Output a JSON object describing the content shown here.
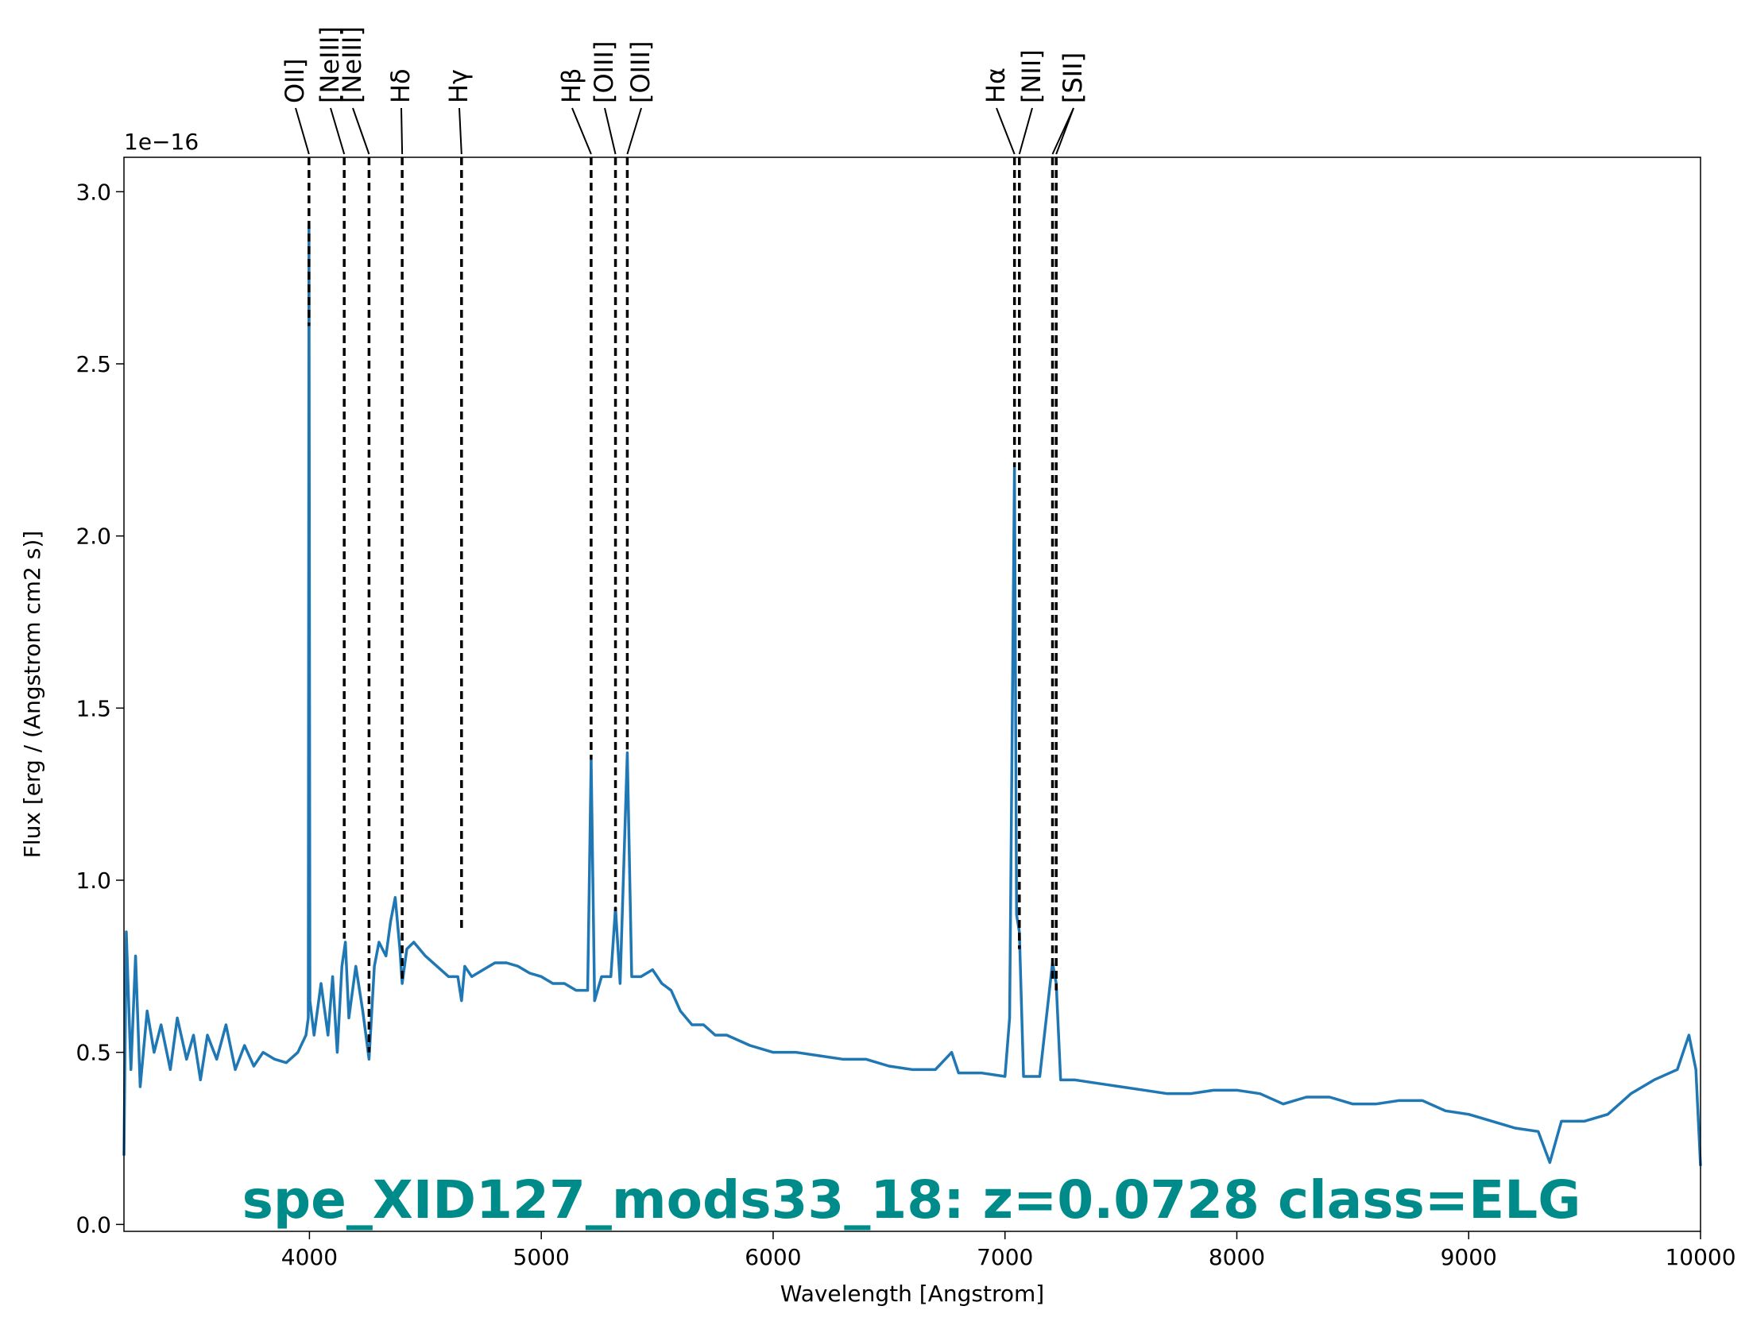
{
  "chart_data": {
    "type": "line",
    "title": "spe_XID127_mods33_18: z=0.0728 class=ELG",
    "x_label": "Wavelength [Angstrom]",
    "y_label": "Flux [erg / (Angstrom cm2 s)]",
    "y_offset_label": "1e−16",
    "color": "#1f77b4",
    "title_color": "#008b8b",
    "xlim": [
      3200,
      10000
    ],
    "ylim": [
      -0.02,
      3.1
    ],
    "xticks": [
      4000,
      5000,
      6000,
      7000,
      8000,
      9000,
      10000
    ],
    "yticks": [
      {
        "value": 0,
        "label": "0.0"
      },
      0.5,
      {
        "value": 1,
        "label": "1.0"
      },
      1.5,
      {
        "value": 2,
        "label": "2.0"
      },
      2.5,
      {
        "value": 3,
        "label": "3.0"
      }
    ],
    "x": [
      3200,
      3210,
      3230,
      3250,
      3270,
      3300,
      3330,
      3360,
      3400,
      3430,
      3470,
      3500,
      3530,
      3560,
      3600,
      3640,
      3680,
      3720,
      3760,
      3800,
      3850,
      3900,
      3950,
      3985,
      3995,
      3998,
      4002,
      4020,
      4050,
      4080,
      4100,
      4120,
      4140,
      4155,
      4170,
      4200,
      4230,
      4257,
      4280,
      4300,
      4330,
      4350,
      4370,
      4390,
      4400,
      4420,
      4450,
      4500,
      4550,
      4600,
      4640,
      4656,
      4670,
      4700,
      4750,
      4800,
      4850,
      4900,
      4950,
      5000,
      5050,
      5100,
      5150,
      5200,
      5215,
      5230,
      5260,
      5300,
      5320,
      5340,
      5371,
      5390,
      5430,
      5480,
      5520,
      5560,
      5600,
      5650,
      5700,
      5750,
      5800,
      5900,
      6000,
      6100,
      6200,
      6300,
      6400,
      6500,
      6600,
      6700,
      6770,
      6800,
      6900,
      7000,
      7020,
      7041,
      7050,
      7062,
      7080,
      7150,
      7205,
      7221,
      7240,
      7300,
      7400,
      7500,
      7600,
      7700,
      7800,
      7900,
      8000,
      8100,
      8200,
      8300,
      8400,
      8500,
      8600,
      8700,
      8800,
      8900,
      9000,
      9100,
      9200,
      9300,
      9350,
      9400,
      9500,
      9600,
      9700,
      9800,
      9900,
      9950,
      9980,
      10000
    ],
    "values": [
      0.2,
      0.85,
      0.45,
      0.78,
      0.4,
      0.62,
      0.5,
      0.58,
      0.45,
      0.6,
      0.48,
      0.55,
      0.42,
      0.55,
      0.48,
      0.58,
      0.45,
      0.52,
      0.46,
      0.5,
      0.48,
      0.47,
      0.5,
      0.55,
      0.6,
      2.9,
      0.65,
      0.55,
      0.7,
      0.55,
      0.72,
      0.5,
      0.75,
      0.82,
      0.6,
      0.75,
      0.62,
      0.48,
      0.75,
      0.82,
      0.78,
      0.88,
      0.95,
      0.8,
      0.7,
      0.8,
      0.82,
      0.78,
      0.75,
      0.72,
      0.72,
      0.65,
      0.75,
      0.72,
      0.74,
      0.76,
      0.76,
      0.75,
      0.73,
      0.72,
      0.7,
      0.7,
      0.68,
      0.68,
      1.35,
      0.65,
      0.72,
      0.72,
      0.92,
      0.7,
      1.37,
      0.72,
      0.72,
      0.74,
      0.7,
      0.68,
      0.62,
      0.58,
      0.58,
      0.55,
      0.55,
      0.52,
      0.5,
      0.5,
      0.49,
      0.48,
      0.48,
      0.46,
      0.45,
      0.45,
      0.5,
      0.44,
      0.44,
      0.43,
      0.6,
      2.2,
      0.9,
      0.85,
      0.43,
      0.43,
      0.76,
      0.7,
      0.42,
      0.42,
      0.41,
      0.4,
      0.39,
      0.38,
      0.38,
      0.39,
      0.39,
      0.38,
      0.35,
      0.37,
      0.37,
      0.35,
      0.35,
      0.36,
      0.36,
      0.33,
      0.32,
      0.3,
      0.28,
      0.27,
      0.18,
      0.3,
      0.3,
      0.32,
      0.38,
      0.42,
      0.45,
      0.55,
      0.45,
      0.17
    ],
    "lines": [
      {
        "name": "OII]",
        "wavelength": 3998,
        "ymin": 2.61
      },
      {
        "name": "[NeIII]",
        "wavelength": 4150,
        "ymin": 0.83
      },
      {
        "name": "[NeIII]",
        "wavelength": 4257,
        "ymin": 0.5
      },
      {
        "name": "Hδ",
        "wavelength": 4400,
        "ymin": 0.7
      },
      {
        "name": "Hγ",
        "wavelength": 4656,
        "ymin": 0.85
      },
      {
        "name": "Hβ",
        "wavelength": 5215,
        "ymin": 1.35
      },
      {
        "name": "[OIII]",
        "wavelength": 5320,
        "ymin": 0.91
      },
      {
        "name": "[OIII]",
        "wavelength": 5371,
        "ymin": 1.38
      },
      {
        "name": "Hα",
        "wavelength": 7041,
        "ymin": 2.2
      },
      {
        "name": "[NII]",
        "wavelength": 7062,
        "ymin": 0.8
      },
      {
        "name": "[SII]",
        "wavelength": 7205,
        "ymin": 0.7
      },
      {
        "name": "[SII]",
        "wavelength": 7221,
        "ymin": 0.68
      }
    ]
  }
}
